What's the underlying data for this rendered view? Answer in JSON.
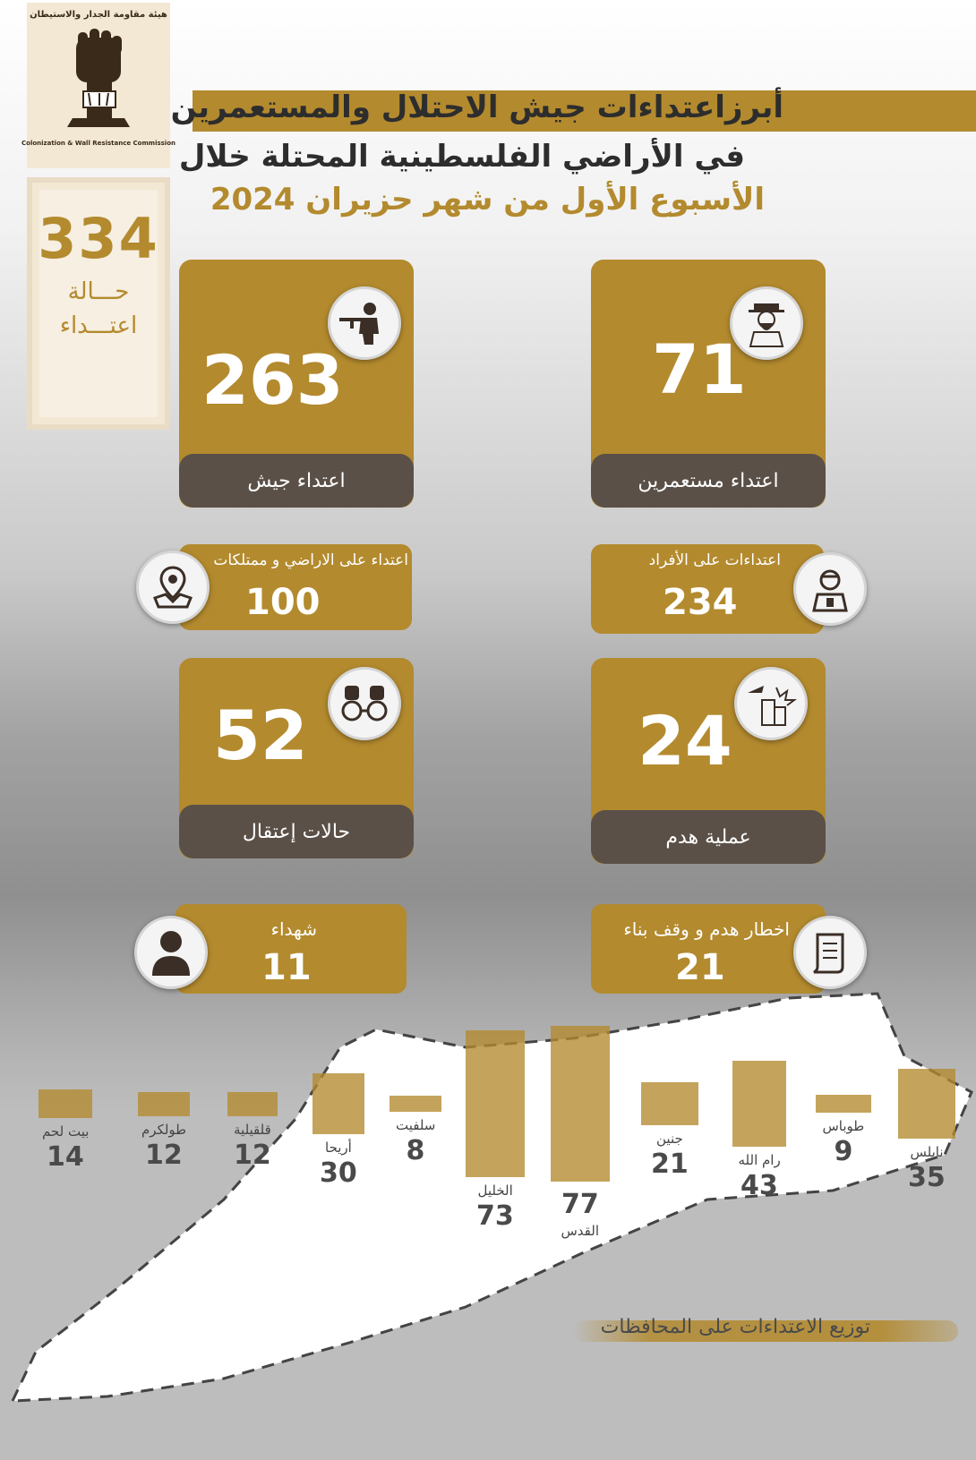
{
  "logo": {
    "arabic_name": "هيئة مقاومة الجدار والاستيطان",
    "english_name": "Colonization & Wall Resistance Commission"
  },
  "total": {
    "value": "334",
    "line1": "حـــالة",
    "line2": "اعتـــداء"
  },
  "title": {
    "line1": "أبرزاعتداءات جيش الاحتلال والمستعمرين",
    "line2": "في الأراضي الفلسطينية المحتلة خلال",
    "line3": "الأسبوع الأول  من شهر حزيران  2024"
  },
  "cards": {
    "army": {
      "value": "263",
      "label": "اعتداء جيش",
      "icon": "soldier-icon"
    },
    "settlers": {
      "value": "71",
      "label": "اعتداء مستعمرين",
      "icon": "settler-icon"
    },
    "land": {
      "value": "100",
      "label": "اعتداء على الاراضي و ممتلكات",
      "icon": "map-pin-icon"
    },
    "individuals": {
      "value": "234",
      "label": "اعتداءات على الأفراد",
      "icon": "injured-person-icon"
    },
    "arrests": {
      "value": "52",
      "label": "حالات إعتقال",
      "icon": "handcuffs-icon"
    },
    "demolitions": {
      "value": "24",
      "label": "عملية هدم",
      "icon": "demolition-icon"
    },
    "martyrs": {
      "value": "11",
      "label": "شهداء",
      "icon": "person-icon"
    },
    "notices": {
      "value": "21",
      "label": "اخطار  هدم و وقف بناء",
      "icon": "document-icon"
    }
  },
  "distribution_title": "توزيع الاعتداءات على المحافظات",
  "colors": {
    "accent": "#b38a2e",
    "dark_label": "#5a5048"
  },
  "chart_data": {
    "type": "bar",
    "categories": [
      "بيت لحم",
      "طولكرم",
      "قلقيلية",
      "أريحا",
      "سلفيت",
      "الخليل",
      "القدس",
      "جنين",
      "رام الله",
      "طوباس",
      "نابلس"
    ],
    "values": [
      14,
      12,
      12,
      30,
      8,
      73,
      77,
      21,
      43,
      9,
      35
    ],
    "value_labels": [
      "14",
      "12",
      "12",
      "30",
      "8",
      "73",
      "77",
      "21",
      "43",
      "9",
      "35"
    ]
  }
}
